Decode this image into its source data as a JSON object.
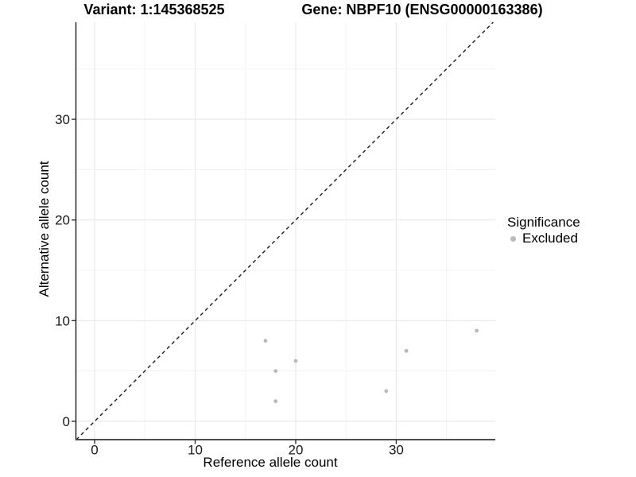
{
  "chart_data": {
    "type": "scatter",
    "title_left": "Variant: 1:145368525",
    "title_right": "Gene: NBPF10 (ENSG00000163386)",
    "xlabel": "Reference allele count",
    "ylabel": "Alternative allele count",
    "xlim": [
      -1.86,
      39.85
    ],
    "ylim": [
      -1.82,
      39.64
    ],
    "x_ticks": [
      0,
      10,
      20,
      30
    ],
    "x_minor_ticks": [
      5,
      15,
      25,
      35
    ],
    "y_ticks": [
      0,
      10,
      20,
      30
    ],
    "y_minor_ticks": [
      5,
      15,
      25,
      35
    ],
    "grid": "major+minor",
    "identity_line": {
      "style": "dashed",
      "equation": "y = x"
    },
    "series": [
      {
        "name": "Excluded",
        "color": "#b9b9b9",
        "points": [
          [
            17,
            8
          ],
          [
            18,
            5
          ],
          [
            18,
            2
          ],
          [
            20,
            6
          ],
          [
            29,
            3
          ],
          [
            31,
            7
          ],
          [
            38,
            9
          ]
        ]
      }
    ],
    "legend": {
      "title": "Significance",
      "position": "right",
      "items": [
        {
          "label": "Excluded",
          "color": "#b9b9b9",
          "marker": "circle"
        }
      ]
    },
    "colors": {
      "background": "#ffffff",
      "point": "#b9b9b9",
      "grid_major": "#e8e8e8",
      "grid_minor": "#f3f3f3",
      "axis_line_left": "#1a1a1a",
      "axis_line_bottom": "#4d4d4d",
      "tick": "#333333",
      "text": "#1a1a1a",
      "identity_line": "#1a1a1a"
    }
  }
}
